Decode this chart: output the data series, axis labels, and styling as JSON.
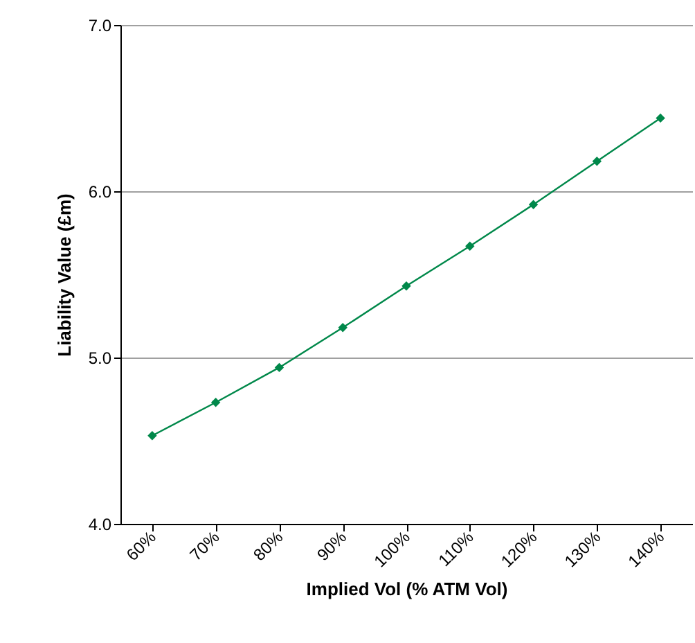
{
  "chart_data": {
    "type": "line",
    "xlabel": "Implied Vol (% ATM Vol)",
    "ylabel": "Liability Value (£m)",
    "categories": [
      "60%",
      "70%",
      "80%",
      "90%",
      "100%",
      "110%",
      "120%",
      "130%",
      "140%"
    ],
    "series": [
      {
        "color": "#00884a",
        "values": [
          4.53,
          4.73,
          4.94,
          5.18,
          5.43,
          5.67,
          5.92,
          6.18,
          6.44
        ]
      }
    ],
    "ylim": [
      4,
      7
    ],
    "yticks": [
      {
        "value": 4,
        "label": "4.0"
      },
      {
        "value": 5,
        "label": "5.0"
      },
      {
        "value": 6,
        "label": "6.0"
      },
      {
        "value": 7,
        "label": "7.0"
      }
    ],
    "grid": "y",
    "marker": "diamond",
    "line_style": "solid"
  }
}
